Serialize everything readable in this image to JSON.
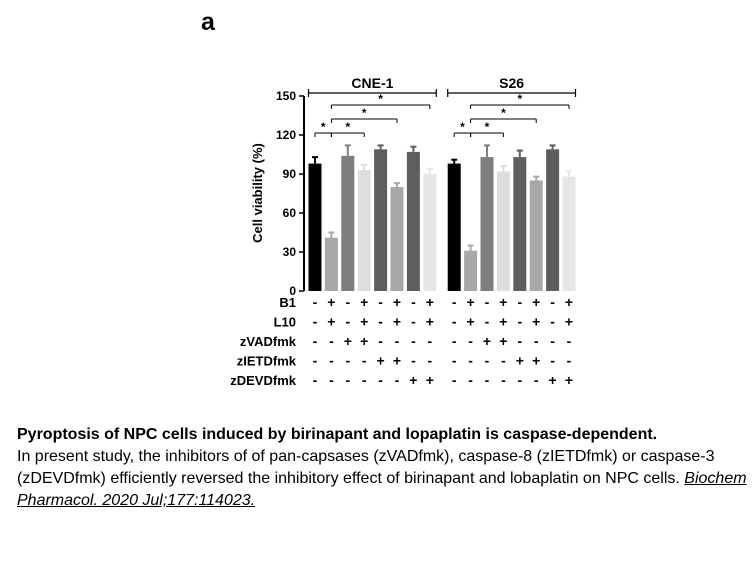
{
  "panel_label": "a",
  "chart_data": {
    "type": "bar",
    "ylabel": "Cell viability (%)",
    "ylim": [
      0,
      150
    ],
    "yticks": [
      0,
      30,
      60,
      90,
      120,
      150
    ],
    "groups": [
      {
        "name": "CNE-1",
        "values": [
          98,
          41,
          104,
          93,
          109,
          80,
          107,
          90
        ],
        "errors": [
          5,
          4,
          8,
          4,
          3,
          3,
          4,
          4
        ]
      },
      {
        "name": "S26",
        "values": [
          98,
          31,
          103,
          92,
          103,
          85,
          109,
          88
        ],
        "errors": [
          3,
          4,
          9,
          4,
          5,
          3,
          3,
          4
        ]
      }
    ],
    "bar_colors": [
      "#000000",
      "#a8a8a8",
      "#7e7e7e",
      "#dedede",
      "#5e5e5e",
      "#a8a8a8",
      "#5e5e5e",
      "#e6e6e6"
    ],
    "treatment_rows": [
      {
        "label": "B1",
        "signs": [
          "-",
          "+",
          "-",
          "+",
          "-",
          "+",
          "-",
          "+",
          "-",
          "+",
          "-",
          "+",
          "-",
          "+",
          "-",
          "+"
        ]
      },
      {
        "label": "L10",
        "signs": [
          "-",
          "+",
          "-",
          "+",
          "-",
          "+",
          "-",
          "+",
          "-",
          "+",
          "-",
          "+",
          "-",
          "+",
          "-",
          "+"
        ]
      },
      {
        "label": "zVADfmk",
        "signs": [
          "-",
          "-",
          "+",
          "+",
          "-",
          "-",
          "-",
          "-",
          "-",
          "-",
          "+",
          "+",
          "-",
          "-",
          "-",
          "-"
        ]
      },
      {
        "label": "zIETDfmk",
        "signs": [
          "-",
          "-",
          "-",
          "-",
          "+",
          "+",
          "-",
          "-",
          "-",
          "-",
          "-",
          "-",
          "+",
          "+",
          "-",
          "-"
        ]
      },
      {
        "label": "zDEVDfmk",
        "signs": [
          "-",
          "-",
          "-",
          "-",
          "-",
          "-",
          "+",
          "+",
          "-",
          "-",
          "-",
          "-",
          "-",
          "-",
          "+",
          "+"
        ]
      }
    ],
    "significance": [
      {
        "from": 0,
        "to": 1,
        "label": "*"
      },
      {
        "from": 1,
        "to": 3,
        "label": "*"
      },
      {
        "from": 1,
        "to": 5,
        "label": "*"
      },
      {
        "from": 1,
        "to": 7,
        "label": "*"
      },
      {
        "from": 8,
        "to": 9,
        "label": "*"
      },
      {
        "from": 9,
        "to": 11,
        "label": "*"
      },
      {
        "from": 9,
        "to": 13,
        "label": "*"
      },
      {
        "from": 9,
        "to": 15,
        "label": "*"
      }
    ]
  },
  "caption": {
    "title": "Pyroptosis of NPC cells induced by birinapant and lopaplatin is caspase-dependent.",
    "body": "In present study, the inhibitors of of pan-capsases (zVADfmk), caspase-8 (zIETDfmk) or caspase-3 (zDEVDfmk) efficiently reversed the inhibitory effect of birinapant and lobaplatin on NPC cells.",
    "citation": "Biochem Pharmacol. 2020 Jul;177:114023."
  }
}
